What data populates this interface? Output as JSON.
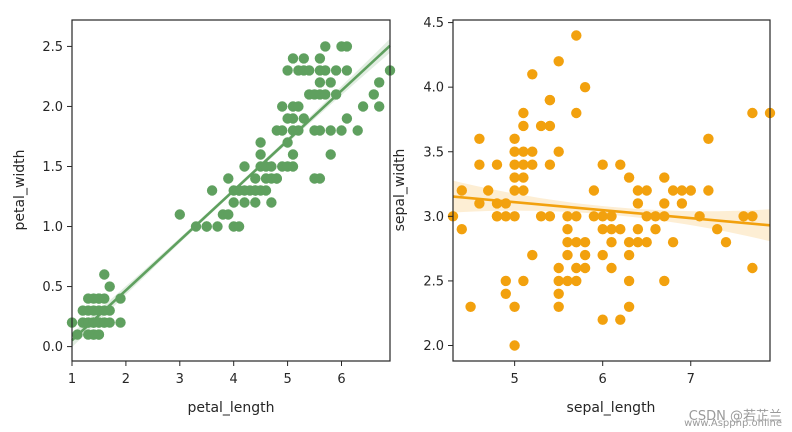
{
  "chart_data": [
    {
      "type": "scatter",
      "xlabel": "petal_length",
      "ylabel": "petal_width",
      "xlim": [
        1.0,
        6.9
      ],
      "ylim": [
        -0.12,
        2.72
      ],
      "xticks": [
        "1",
        "2",
        "3",
        "4",
        "5",
        "6"
      ],
      "yticks": [
        "0.0",
        "0.5",
        "1.0",
        "1.5",
        "2.0",
        "2.5"
      ],
      "color": "#5fa05f",
      "regression": {
        "slope": 0.4158,
        "intercept": -0.3631
      },
      "points": [
        [
          1.0,
          0.2
        ],
        [
          1.1,
          0.1
        ],
        [
          1.2,
          0.2
        ],
        [
          1.2,
          0.2
        ],
        [
          1.3,
          0.2
        ],
        [
          1.3,
          0.4
        ],
        [
          1.3,
          0.3
        ],
        [
          1.3,
          0.2
        ],
        [
          1.4,
          0.2
        ],
        [
          1.4,
          0.3
        ],
        [
          1.4,
          0.2
        ],
        [
          1.4,
          0.1
        ],
        [
          1.4,
          0.2
        ],
        [
          1.5,
          0.2
        ],
        [
          1.5,
          0.4
        ],
        [
          1.5,
          0.1
        ],
        [
          1.5,
          0.3
        ],
        [
          1.5,
          0.2
        ],
        [
          1.5,
          0.4
        ],
        [
          1.6,
          0.2
        ],
        [
          1.6,
          0.6
        ],
        [
          1.6,
          0.4
        ],
        [
          1.6,
          0.2
        ],
        [
          1.7,
          0.3
        ],
        [
          1.7,
          0.5
        ],
        [
          1.7,
          0.2
        ],
        [
          1.9,
          0.2
        ],
        [
          1.9,
          0.4
        ],
        [
          1.4,
          0.1
        ],
        [
          1.5,
          0.1
        ],
        [
          1.2,
          0.3
        ],
        [
          1.3,
          0.1
        ],
        [
          1.6,
          0.3
        ],
        [
          1.4,
          0.4
        ],
        [
          3.0,
          1.1
        ],
        [
          3.3,
          1.0
        ],
        [
          3.5,
          1.0
        ],
        [
          3.6,
          1.3
        ],
        [
          3.7,
          1.0
        ],
        [
          3.8,
          1.1
        ],
        [
          3.9,
          1.1
        ],
        [
          3.9,
          1.4
        ],
        [
          4.0,
          1.0
        ],
        [
          4.0,
          1.3
        ],
        [
          4.0,
          1.2
        ],
        [
          4.1,
          1.0
        ],
        [
          4.1,
          1.3
        ],
        [
          4.2,
          1.3
        ],
        [
          4.2,
          1.2
        ],
        [
          4.2,
          1.5
        ],
        [
          4.3,
          1.3
        ],
        [
          4.4,
          1.4
        ],
        [
          4.4,
          1.3
        ],
        [
          4.4,
          1.2
        ],
        [
          4.5,
          1.5
        ],
        [
          4.5,
          1.3
        ],
        [
          4.5,
          1.7
        ],
        [
          4.6,
          1.5
        ],
        [
          4.6,
          1.4
        ],
        [
          4.6,
          1.3
        ],
        [
          4.7,
          1.4
        ],
        [
          4.7,
          1.5
        ],
        [
          4.7,
          1.2
        ],
        [
          4.8,
          1.8
        ],
        [
          4.8,
          1.4
        ],
        [
          4.9,
          1.5
        ],
        [
          5.0,
          1.7
        ],
        [
          5.1,
          1.6
        ],
        [
          4.9,
          1.8
        ],
        [
          5.0,
          1.5
        ],
        [
          5.1,
          1.5
        ],
        [
          3.5,
          1.0
        ],
        [
          4.1,
          1.3
        ],
        [
          4.5,
          1.6
        ],
        [
          4.4,
          1.3
        ],
        [
          5.0,
          1.9
        ],
        [
          5.1,
          1.9
        ],
        [
          5.1,
          1.8
        ],
        [
          5.1,
          2.0
        ],
        [
          5.2,
          2.0
        ],
        [
          5.2,
          2.3
        ],
        [
          5.3,
          1.9
        ],
        [
          5.3,
          2.3
        ],
        [
          5.4,
          2.1
        ],
        [
          5.4,
          2.3
        ],
        [
          5.5,
          1.8
        ],
        [
          5.5,
          2.1
        ],
        [
          5.6,
          2.1
        ],
        [
          5.6,
          1.8
        ],
        [
          5.6,
          2.4
        ],
        [
          5.6,
          2.2
        ],
        [
          5.7,
          2.3
        ],
        [
          5.7,
          2.1
        ],
        [
          5.7,
          2.5
        ],
        [
          5.8,
          2.2
        ],
        [
          5.8,
          1.6
        ],
        [
          5.8,
          1.8
        ],
        [
          5.9,
          2.1
        ],
        [
          5.9,
          2.3
        ],
        [
          6.0,
          2.5
        ],
        [
          6.0,
          1.8
        ],
        [
          6.1,
          1.9
        ],
        [
          6.1,
          2.3
        ],
        [
          6.1,
          2.5
        ],
        [
          6.3,
          1.8
        ],
        [
          6.4,
          2.0
        ],
        [
          6.6,
          2.1
        ],
        [
          6.7,
          2.2
        ],
        [
          6.7,
          2.0
        ],
        [
          6.9,
          2.3
        ],
        [
          4.9,
          2.0
        ],
        [
          5.0,
          2.3
        ],
        [
          5.5,
          1.4
        ],
        [
          5.6,
          1.4
        ],
        [
          5.1,
          2.4
        ],
        [
          5.6,
          2.3
        ],
        [
          5.2,
          1.8
        ],
        [
          5.3,
          2.4
        ],
        [
          4.8,
          1.4
        ]
      ]
    },
    {
      "type": "scatter",
      "xlabel": "sepal_length",
      "ylabel": "sepal_width",
      "xlim": [
        4.3,
        7.9
      ],
      "ylim": [
        1.88,
        4.52
      ],
      "xticks": [
        "5",
        "6",
        "7"
      ],
      "yticks": [
        "2.0",
        "2.5",
        "3.0",
        "3.5",
        "4.0",
        "4.5"
      ],
      "color": "#f2a10e",
      "regression": {
        "slope": -0.0618,
        "intercept": 3.4189
      },
      "points": [
        [
          4.3,
          3.0
        ],
        [
          4.4,
          2.9
        ],
        [
          4.4,
          3.2
        ],
        [
          4.5,
          2.3
        ],
        [
          4.6,
          3.1
        ],
        [
          4.6,
          3.4
        ],
        [
          4.6,
          3.6
        ],
        [
          4.7,
          3.2
        ],
        [
          4.8,
          3.0
        ],
        [
          4.8,
          3.4
        ],
        [
          4.9,
          3.0
        ],
        [
          4.9,
          3.1
        ],
        [
          4.9,
          2.5
        ],
        [
          4.9,
          2.4
        ],
        [
          5.0,
          3.6
        ],
        [
          5.0,
          3.4
        ],
        [
          5.0,
          3.0
        ],
        [
          5.0,
          3.3
        ],
        [
          5.0,
          2.0
        ],
        [
          5.0,
          2.3
        ],
        [
          5.0,
          3.5
        ],
        [
          5.1,
          3.5
        ],
        [
          5.1,
          3.8
        ],
        [
          5.1,
          3.3
        ],
        [
          5.1,
          2.5
        ],
        [
          5.1,
          3.7
        ],
        [
          5.2,
          3.5
        ],
        [
          5.2,
          4.1
        ],
        [
          5.2,
          2.7
        ],
        [
          5.3,
          3.7
        ],
        [
          5.4,
          3.9
        ],
        [
          5.4,
          3.4
        ],
        [
          5.4,
          3.0
        ],
        [
          5.4,
          3.7
        ],
        [
          5.5,
          4.2
        ],
        [
          5.5,
          3.5
        ],
        [
          5.5,
          2.3
        ],
        [
          5.5,
          2.4
        ],
        [
          5.5,
          2.5
        ],
        [
          5.5,
          2.6
        ],
        [
          5.6,
          2.9
        ],
        [
          5.6,
          3.0
        ],
        [
          5.6,
          2.5
        ],
        [
          5.6,
          2.8
        ],
        [
          5.7,
          4.4
        ],
        [
          5.7,
          3.8
        ],
        [
          5.7,
          2.8
        ],
        [
          5.7,
          2.6
        ],
        [
          5.7,
          3.0
        ],
        [
          5.8,
          4.0
        ],
        [
          5.8,
          2.7
        ],
        [
          5.8,
          2.6
        ],
        [
          5.9,
          3.0
        ],
        [
          5.9,
          3.2
        ],
        [
          6.0,
          2.2
        ],
        [
          6.0,
          2.9
        ],
        [
          6.0,
          3.4
        ],
        [
          6.0,
          3.0
        ],
        [
          6.1,
          2.8
        ],
        [
          6.1,
          3.0
        ],
        [
          6.1,
          2.6
        ],
        [
          6.2,
          2.2
        ],
        [
          6.2,
          2.9
        ],
        [
          6.2,
          3.4
        ],
        [
          6.3,
          3.3
        ],
        [
          6.3,
          2.5
        ],
        [
          6.3,
          2.3
        ],
        [
          6.3,
          2.7
        ],
        [
          6.4,
          3.2
        ],
        [
          6.4,
          2.9
        ],
        [
          6.4,
          2.8
        ],
        [
          6.5,
          2.8
        ],
        [
          6.5,
          3.0
        ],
        [
          6.5,
          3.2
        ],
        [
          6.6,
          2.9
        ],
        [
          6.6,
          3.0
        ],
        [
          6.7,
          3.1
        ],
        [
          6.7,
          2.5
        ],
        [
          6.7,
          3.3
        ],
        [
          6.8,
          2.8
        ],
        [
          6.8,
          3.2
        ],
        [
          6.9,
          3.1
        ],
        [
          7.0,
          3.2
        ],
        [
          7.1,
          3.0
        ],
        [
          7.2,
          3.6
        ],
        [
          7.2,
          3.2
        ],
        [
          7.3,
          2.9
        ],
        [
          7.4,
          2.8
        ],
        [
          7.6,
          3.0
        ],
        [
          7.7,
          3.8
        ],
        [
          7.7,
          2.6
        ],
        [
          7.7,
          3.0
        ],
        [
          7.9,
          3.8
        ],
        [
          5.8,
          2.8
        ],
        [
          6.4,
          3.1
        ],
        [
          6.9,
          3.2
        ],
        [
          5.0,
          3.2
        ],
        [
          5.2,
          3.4
        ],
        [
          4.8,
          3.1
        ],
        [
          5.3,
          3.0
        ],
        [
          4.8,
          3.0
        ],
        [
          5.1,
          3.4
        ],
        [
          5.4,
          3.9
        ],
        [
          5.7,
          2.5
        ],
        [
          6.7,
          3.0
        ],
        [
          6.3,
          2.8
        ],
        [
          5.1,
          3.2
        ],
        [
          6.0,
          2.7
        ],
        [
          5.6,
          2.7
        ],
        [
          6.1,
          2.9
        ]
      ]
    }
  ],
  "watermark": {
    "line1": "CSDN @若芷兰",
    "line2": "www.Aspphp.online"
  }
}
